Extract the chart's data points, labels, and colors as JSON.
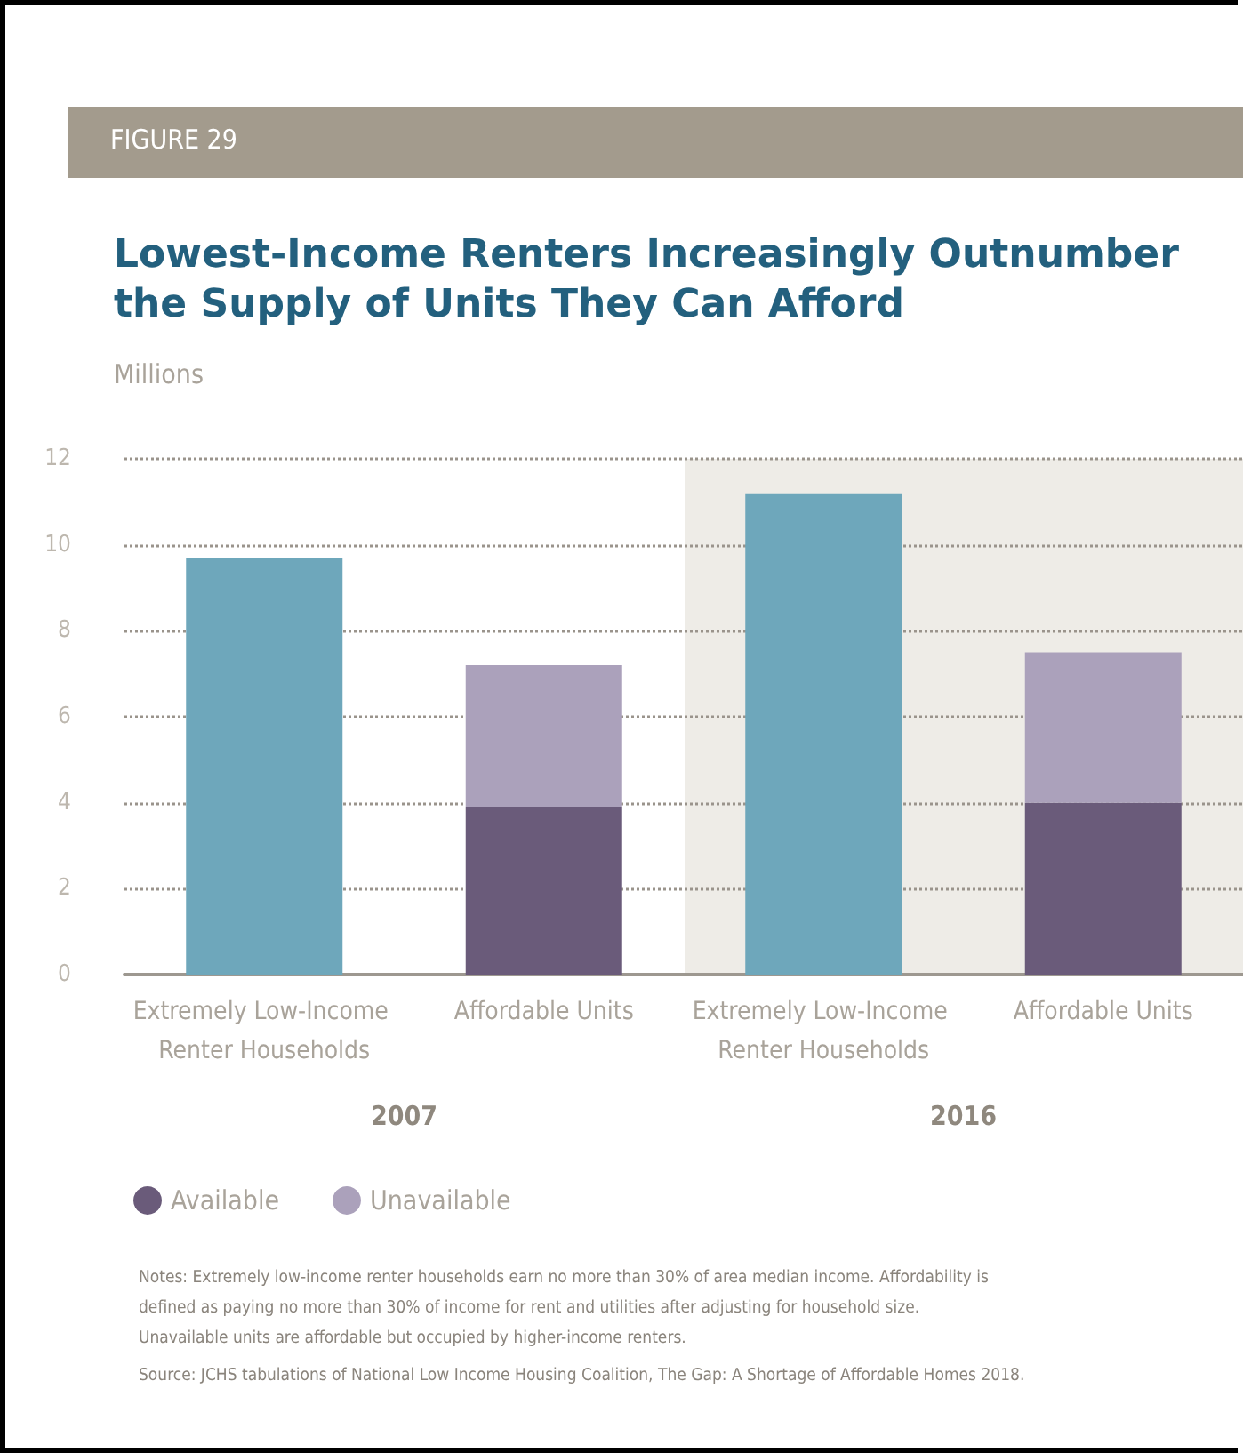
{
  "chart_data": {
    "type": "bar",
    "title": "Lowest-Income Renters Increasingly Outnumber the Supply of Units They Can Afford",
    "ylabel": "Millions",
    "categories": [
      "Extremely Low-Income Renter Households",
      "Affordable Units",
      "Extremely Low-Income Renter Households",
      "Affordable Units"
    ],
    "series": [
      {
        "color": "#6ea7bb",
        "values": [
          9.7,
          null,
          11.2,
          null
        ]
      },
      {
        "name": "Available",
        "color": "#6a5b7a",
        "values": [
          null,
          3.9,
          null,
          4.0
        ]
      },
      {
        "name": "Unavailable",
        "color": "#aba1bb",
        "values": [
          null,
          3.3,
          null,
          3.5
        ]
      }
    ],
    "stacked": true,
    "ylim": [
      0,
      12
    ],
    "yticks": [
      0,
      2,
      4,
      6,
      8,
      10,
      12
    ],
    "grid": "y",
    "legend": "bottom left",
    "annotations": [
      "FIGURE 29",
      "2007",
      "2016",
      "Notes: Extremely low-income renter households earn no more than 30% of area median income. Affordability is defined as paying no more than 30% of income for rent and utilities after adjusting for household size. Unavailable units are affordable but occupied by higher-income renters.",
      "Source: JCHS tabulations of National Low Income Housing Coalition, The Gap: A Shortage of Affordable Homes 2018."
    ]
  }
}
